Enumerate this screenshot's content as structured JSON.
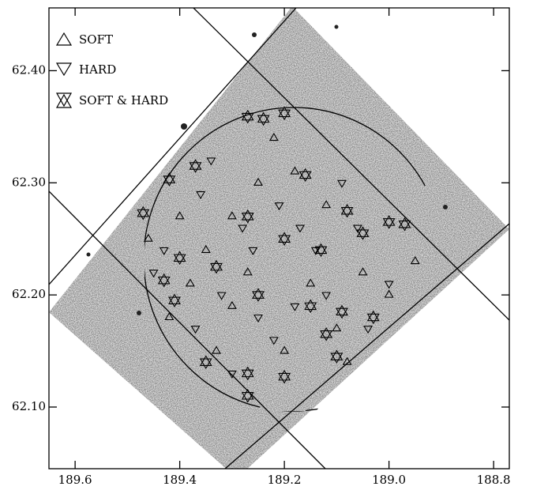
{
  "chart_data": {
    "type": "scatter",
    "xlim": [
      189.65,
      188.77
    ],
    "ylim": [
      62.045,
      62.456
    ],
    "xticks": [
      189.6,
      189.4,
      189.2,
      {
        "value": 189.0,
        "label": "189.0"
      },
      188.8
    ],
    "yticks": [
      {
        "value": 62.1,
        "label": "62.10"
      },
      {
        "value": 62.2,
        "label": "62.20"
      },
      {
        "value": 62.3,
        "label": "62.30"
      },
      {
        "value": 62.4,
        "label": "62.40"
      }
    ],
    "series": [
      {
        "name": "SOFT",
        "color": "#000000",
        "x": [
          189.46,
          189.4,
          189.35,
          189.3,
          189.42,
          189.25,
          189.18,
          189.12,
          189.05,
          188.95,
          189.2,
          189.33,
          189.1,
          189.27,
          189.15,
          189.38,
          189.0,
          189.22,
          189.08,
          189.3
        ],
        "values": [
          62.25,
          62.27,
          62.24,
          62.19,
          62.18,
          62.3,
          62.31,
          62.28,
          62.22,
          62.23,
          62.15,
          62.15,
          62.17,
          62.22,
          62.21,
          62.21,
          62.2,
          62.34,
          62.14,
          62.27
        ]
      },
      {
        "name": "HARD",
        "color": "#000000",
        "x": [
          189.43,
          189.36,
          189.28,
          189.21,
          189.14,
          189.06,
          189.0,
          189.32,
          189.25,
          189.18,
          189.37,
          189.12,
          189.3,
          189.22,
          189.45,
          189.09,
          189.26,
          189.04,
          189.17,
          189.34
        ],
        "values": [
          62.24,
          62.29,
          62.26,
          62.28,
          62.24,
          62.26,
          62.21,
          62.2,
          62.18,
          62.19,
          62.17,
          62.2,
          62.13,
          62.16,
          62.22,
          62.3,
          62.24,
          62.17,
          62.26,
          62.32
        ]
      },
      {
        "name": "SOFT & HARD",
        "color": "#000000",
        "x": [
          189.47,
          189.42,
          189.37,
          189.27,
          189.24,
          189.2,
          189.16,
          189.08,
          189.0,
          188.97,
          189.43,
          189.4,
          189.33,
          189.27,
          189.2,
          189.13,
          189.05,
          189.25,
          189.15,
          189.09,
          189.03,
          189.12,
          189.35,
          189.27,
          189.2,
          189.27,
          189.1,
          189.41
        ],
        "values": [
          62.273,
          62.303,
          62.315,
          62.359,
          62.357,
          62.362,
          62.307,
          62.275,
          62.265,
          62.263,
          62.213,
          62.233,
          62.225,
          62.27,
          62.25,
          62.24,
          62.255,
          62.2,
          62.19,
          62.185,
          62.18,
          62.165,
          62.14,
          62.13,
          62.127,
          62.11,
          62.145,
          62.195
        ]
      }
    ]
  }
}
